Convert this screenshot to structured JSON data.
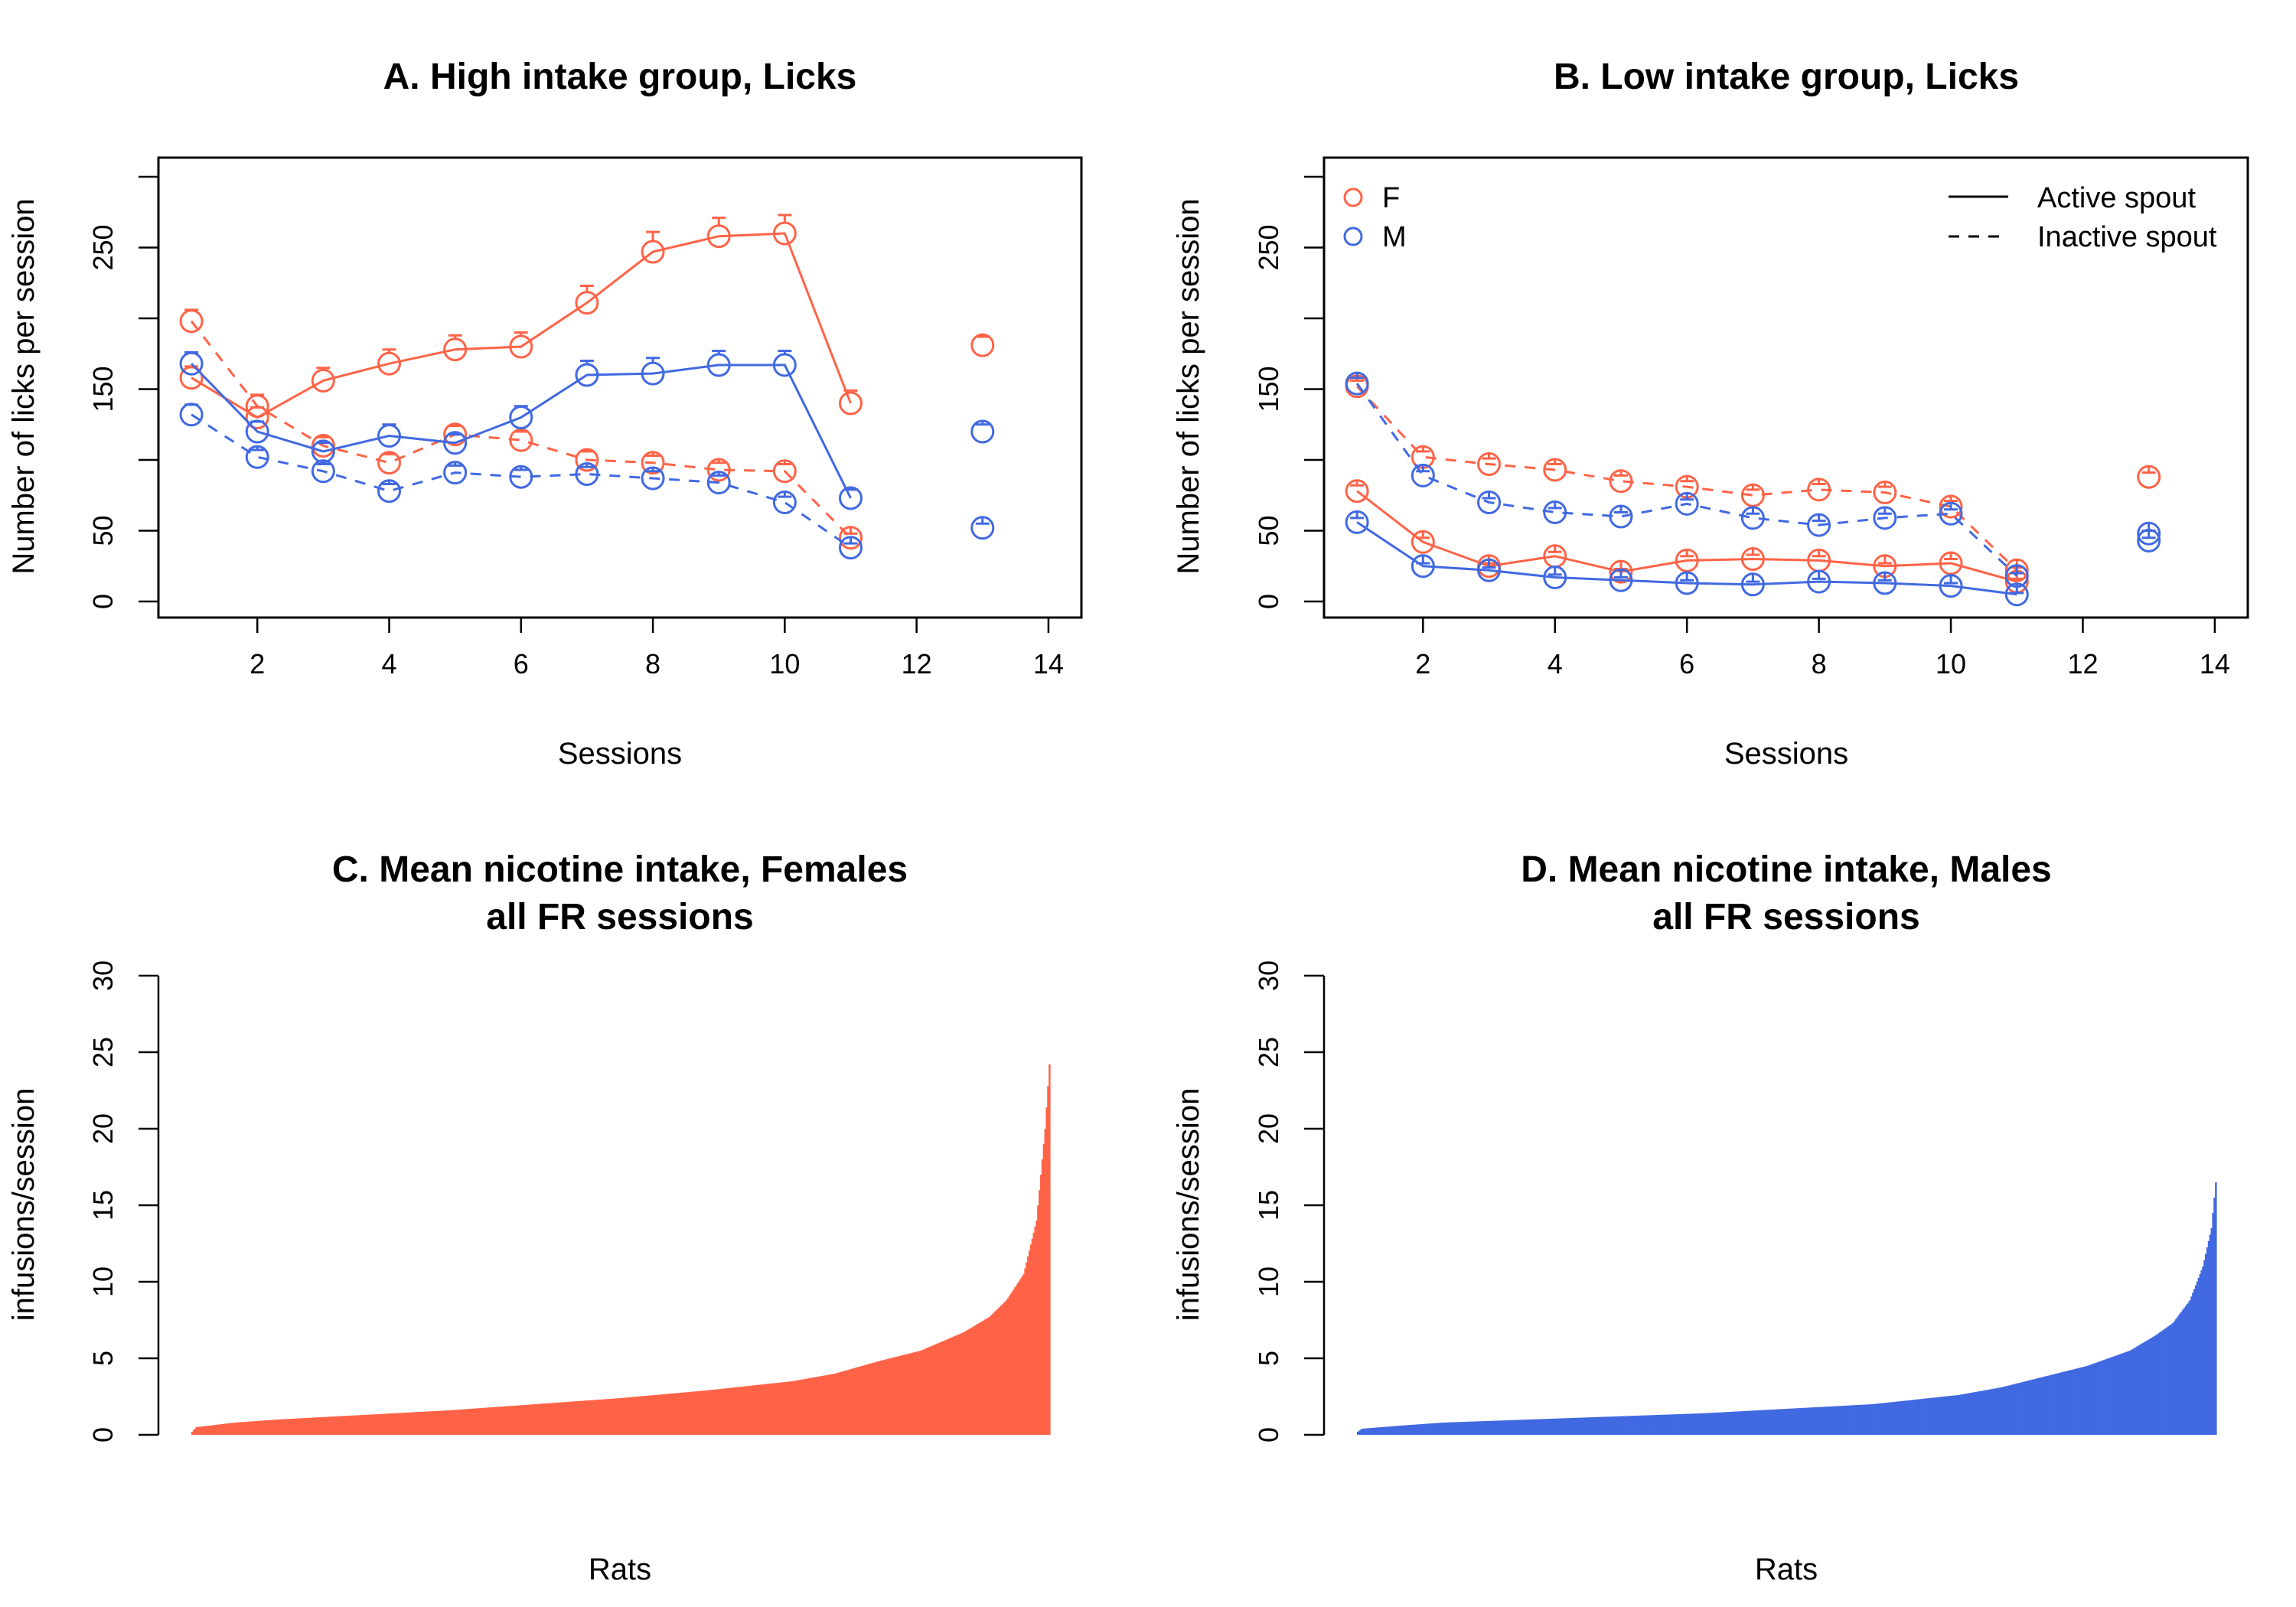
{
  "colors": {
    "female": "#FF6347",
    "male": "#4169E1"
  },
  "chart_data": [
    {
      "type": "line",
      "title": "A. High intake group, Licks",
      "xlabel": "Sessions",
      "ylabel": "Number of licks per session",
      "xlim": [
        0.5,
        14.5
      ],
      "ylim": [
        0,
        300
      ],
      "xticks": [
        2,
        4,
        6,
        8,
        10,
        12,
        14
      ],
      "yticks": [
        0,
        50,
        150,
        250
      ],
      "ytick_marks": [
        0,
        50,
        100,
        150,
        200,
        250,
        300
      ],
      "series": [
        {
          "name": "F",
          "color_key": "female",
          "linestyle": "solid",
          "x": [
            1,
            2,
            3,
            4,
            5,
            6,
            7,
            8,
            9,
            10,
            11,
            13
          ],
          "y": [
            158,
            130,
            156,
            168,
            178,
            180,
            211,
            247,
            258,
            260,
            140,
            181
          ],
          "err": [
            8,
            7,
            9,
            10,
            10,
            10,
            12,
            14,
            13,
            13,
            9,
            6
          ],
          "connect_through": 11
        },
        {
          "name": "F",
          "color_key": "female",
          "linestyle": "dashed",
          "x": [
            1,
            2,
            3,
            4,
            5,
            6,
            7,
            8,
            9,
            10,
            11
          ],
          "y": [
            198,
            138,
            110,
            98,
            118,
            114,
            100,
            98,
            93,
            92,
            45
          ],
          "err": [
            8,
            8,
            6,
            6,
            6,
            6,
            6,
            5,
            5,
            5,
            3
          ]
        },
        {
          "name": "M",
          "color_key": "male",
          "linestyle": "solid",
          "x": [
            1,
            2,
            3,
            4,
            5,
            6,
            7,
            8,
            9,
            10,
            11,
            13
          ],
          "y": [
            168,
            120,
            106,
            117,
            112,
            130,
            160,
            161,
            167,
            167,
            73,
            120
          ],
          "err": [
            8,
            7,
            6,
            8,
            6,
            8,
            10,
            11,
            10,
            10,
            6,
            5
          ],
          "connect_through": 11
        },
        {
          "name": "M",
          "color_key": "male",
          "linestyle": "dashed",
          "x": [
            1,
            2,
            3,
            4,
            5,
            6,
            7,
            8,
            9,
            10,
            11,
            13
          ],
          "y": [
            132,
            102,
            92,
            78,
            91,
            88,
            90,
            87,
            84,
            70,
            38,
            52
          ],
          "err": [
            7,
            5,
            5,
            5,
            5,
            5,
            5,
            5,
            5,
            4,
            3,
            3
          ],
          "connect_through": 11
        }
      ]
    },
    {
      "type": "line",
      "title": "B. Low intake group, Licks",
      "xlabel": "Sessions",
      "ylabel": "Number of licks per session",
      "xlim": [
        0.5,
        14.5
      ],
      "ylim": [
        0,
        300
      ],
      "xticks": [
        2,
        4,
        6,
        8,
        10,
        12,
        14
      ],
      "yticks": [
        0,
        50,
        150,
        250
      ],
      "ytick_marks": [
        0,
        50,
        100,
        150,
        200,
        250,
        300
      ],
      "legend": {
        "groups": [
          {
            "label": "F",
            "color_key": "female"
          },
          {
            "label": "M",
            "color_key": "male"
          }
        ],
        "lines": [
          {
            "label": "Active spout",
            "linestyle": "solid"
          },
          {
            "label": "Inactive spout",
            "linestyle": "dashed"
          }
        ],
        "position": "top"
      },
      "series": [
        {
          "name": "F",
          "color_key": "female",
          "linestyle": "solid",
          "x": [
            1,
            2,
            3,
            4,
            5,
            6,
            7,
            8,
            9,
            10,
            11
          ],
          "y": [
            78,
            42,
            25,
            32,
            21,
            29,
            30,
            29,
            25,
            27,
            14
          ],
          "err": [
            4,
            3,
            2,
            3,
            2,
            3,
            3,
            3,
            2,
            3,
            2
          ]
        },
        {
          "name": "F",
          "color_key": "female",
          "linestyle": "dashed",
          "x": [
            1,
            2,
            3,
            4,
            5,
            6,
            7,
            8,
            9,
            10,
            11,
            13
          ],
          "y": [
            152,
            102,
            97,
            93,
            85,
            81,
            75,
            79,
            77,
            67,
            22,
            88
          ],
          "err": [
            4,
            4,
            4,
            4,
            4,
            4,
            4,
            4,
            4,
            4,
            2,
            3
          ],
          "connect_through": 11
        },
        {
          "name": "M",
          "color_key": "male",
          "linestyle": "solid",
          "x": [
            1,
            2,
            3,
            4,
            5,
            6,
            7,
            8,
            9,
            10,
            11,
            13
          ],
          "y": [
            56,
            25,
            22,
            17,
            15,
            13,
            12,
            14,
            13,
            11,
            5,
            48
          ],
          "err": [
            3,
            2,
            2,
            2,
            2,
            2,
            2,
            2,
            2,
            2,
            1,
            2
          ],
          "connect_through": 11
        },
        {
          "name": "M",
          "color_key": "male",
          "linestyle": "dashed",
          "x": [
            1,
            2,
            3,
            4,
            5,
            6,
            7,
            8,
            9,
            10,
            11,
            13
          ],
          "y": [
            154,
            89,
            70,
            63,
            60,
            69,
            59,
            54,
            59,
            62,
            18,
            43
          ],
          "err": [
            4,
            3,
            3,
            3,
            3,
            3,
            3,
            3,
            3,
            3,
            2,
            2
          ],
          "connect_through": 11
        }
      ]
    },
    {
      "type": "bar",
      "title": "C. Mean nicotine intake, Females",
      "subtitle": "all FR sessions",
      "xlabel": "Rats",
      "ylabel": "infusions/session",
      "ylim": [
        0,
        30
      ],
      "yticks": [
        0,
        5,
        10,
        15,
        20,
        25,
        30
      ],
      "color_key": "female",
      "n_bars": 600,
      "sorted_values_quantiles": {
        "q": [
          0,
          0.005,
          0.05,
          0.1,
          0.2,
          0.3,
          0.4,
          0.5,
          0.6,
          0.7,
          0.75,
          0.8,
          0.85,
          0.9,
          0.93,
          0.95,
          0.97,
          0.985,
          0.995,
          1
        ],
        "v": [
          0.2,
          0.5,
          0.8,
          1.0,
          1.3,
          1.6,
          2.0,
          2.4,
          2.9,
          3.5,
          4.0,
          4.8,
          5.5,
          6.7,
          7.7,
          8.8,
          10.5,
          14.0,
          20.0,
          24.2
        ]
      }
    },
    {
      "type": "bar",
      "title": "D. Mean nicotine intake, Males",
      "subtitle": "all FR sessions",
      "xlabel": "Rats",
      "ylabel": "infusions/session",
      "ylim": [
        0,
        30
      ],
      "yticks": [
        0,
        5,
        10,
        15,
        20,
        25,
        30
      ],
      "color_key": "male",
      "n_bars": 600,
      "sorted_values_quantiles": {
        "q": [
          0,
          0.005,
          0.05,
          0.1,
          0.2,
          0.3,
          0.4,
          0.5,
          0.6,
          0.7,
          0.75,
          0.8,
          0.85,
          0.9,
          0.93,
          0.95,
          0.97,
          0.985,
          0.995,
          1
        ],
        "v": [
          0.2,
          0.4,
          0.6,
          0.8,
          1.0,
          1.2,
          1.4,
          1.7,
          2.0,
          2.6,
          3.1,
          3.8,
          4.5,
          5.5,
          6.5,
          7.3,
          8.8,
          11.0,
          13.5,
          16.5
        ]
      }
    }
  ]
}
